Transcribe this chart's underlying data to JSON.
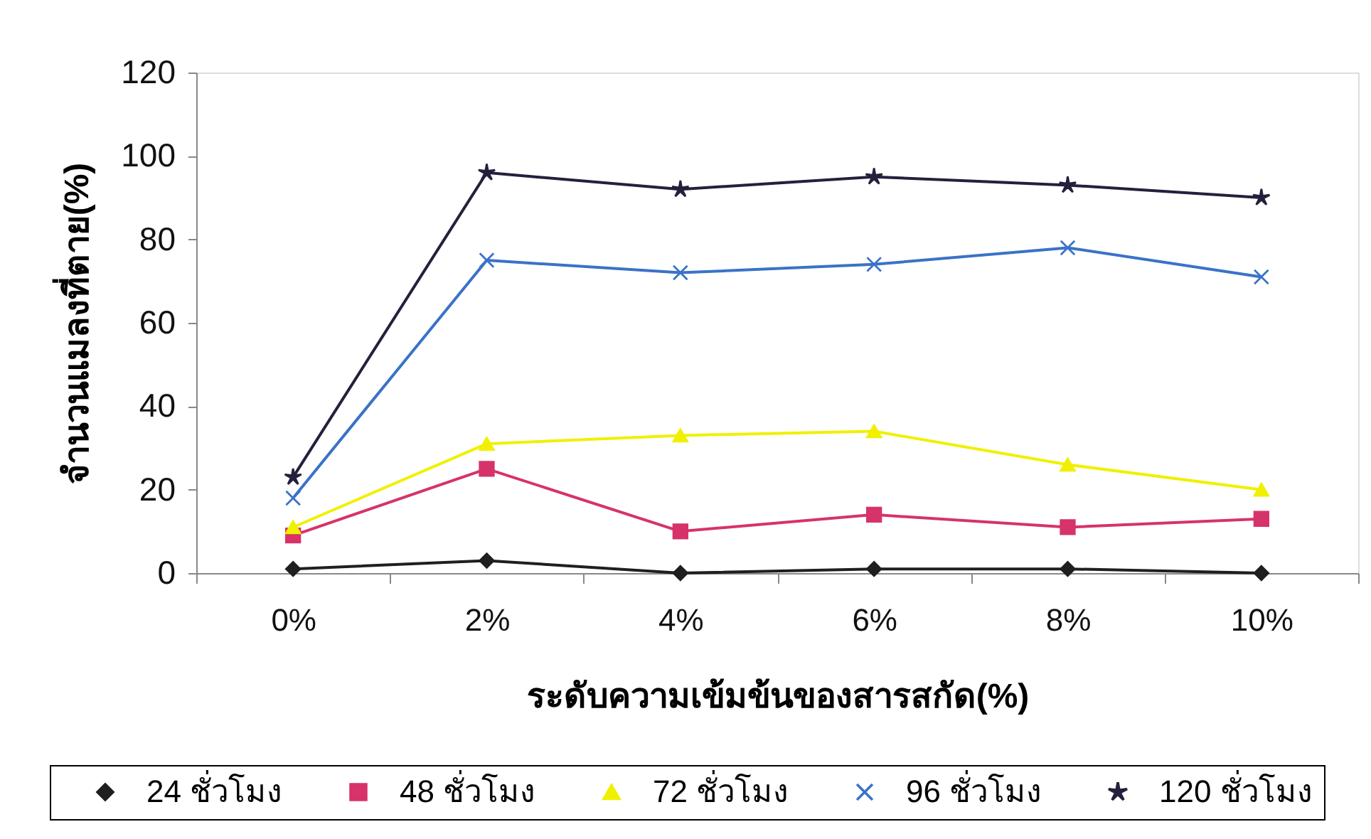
{
  "chart_data": {
    "type": "line",
    "xlabel": "ระดับความเข้มข้นของสารสกัด(%)",
    "ylabel": "จำนวนแมลงที่ตาย(%)",
    "categories": [
      "0%",
      "2%",
      "4%",
      "6%",
      "8%",
      "10%"
    ],
    "ylim": [
      0,
      120
    ],
    "yticks": [
      0,
      20,
      40,
      60,
      80,
      100,
      120
    ],
    "grid": false,
    "legend": "bottom",
    "line_style": "solid",
    "series": [
      {
        "name": "24 ชั่วโมง",
        "color": "#1f1f1f",
        "marker": "diamond",
        "values": [
          1,
          3,
          0,
          1,
          1,
          0
        ]
      },
      {
        "name": "48 ชั่วโมง",
        "color": "#d6336a",
        "marker": "square",
        "values": [
          9,
          25,
          10,
          14,
          11,
          13
        ]
      },
      {
        "name": "72 ชั่วโมง",
        "color": "#f0f000",
        "marker": "triangle",
        "values": [
          11,
          31,
          33,
          34,
          26,
          20
        ]
      },
      {
        "name": "96 ชั่วโมง",
        "color": "#3a72c8",
        "marker": "cross",
        "values": [
          18,
          75,
          72,
          74,
          78,
          71
        ]
      },
      {
        "name": "120 ชั่วโมง",
        "color": "#24203c",
        "marker": "star",
        "values": [
          23,
          96,
          92,
          95,
          93,
          90
        ]
      }
    ]
  }
}
